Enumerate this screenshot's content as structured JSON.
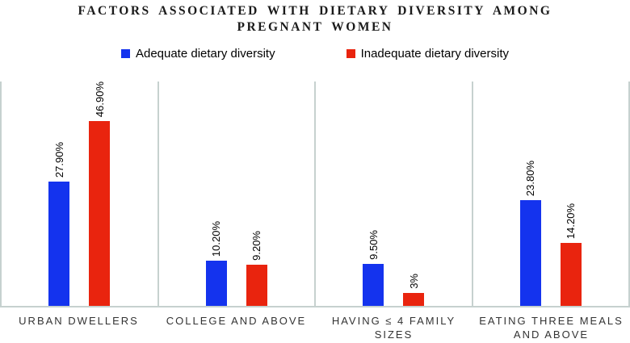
{
  "chart_data": {
    "type": "bar",
    "title": "FACTORS ASSOCIATED WITH DIETARY DIVERSITY AMONG PREGNANT WOMEN",
    "title_lines": [
      "FACTORS ASSOCIATED WITH DIETARY DIVERSITY AMONG",
      "PREGNANT WOMEN"
    ],
    "categories": [
      "URBAN DWELLERS",
      "COLLEGE AND ABOVE",
      "HAVING ≤ 4 FAMILY SIZES",
      "EATING THREE MEALS AND ABOVE"
    ],
    "series": [
      {
        "name": "Adequate dietary diversity",
        "color": "#1433ee",
        "values": [
          27.9,
          10.2,
          9.5,
          23.8
        ],
        "value_labels": [
          "27.90%",
          "10.20%",
          "9.50%",
          "23.80%"
        ]
      },
      {
        "name": "Inadequate dietary diversity",
        "color": "#e9240e",
        "values": [
          46.9,
          9.2,
          3,
          14.2
        ],
        "value_labels": [
          "46.90%",
          "9.20%",
          "3%",
          "14.20%"
        ]
      }
    ],
    "ylim": [
      0,
      50.5
    ],
    "grid": false,
    "legend_position": "top-center",
    "axis_color": "#c6d1cf",
    "value_label_rotation": 90
  }
}
